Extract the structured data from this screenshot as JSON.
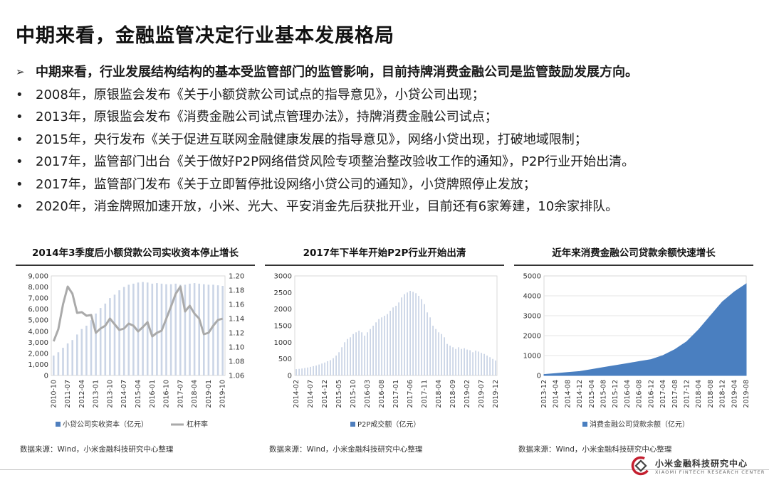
{
  "title": "中期来看，金融监管决定行业基本发展格局",
  "bullets": {
    "lead": "中期来看，行业发展结构结构的基本受监管部门的监管影响，目前持牌消费金融公司是监管鼓励发展方向。",
    "items": [
      "2008年，原银监会发布《关于小额贷款公司试点的指导意见》，小贷公司出现；",
      "2013年，原银监会发布《消费金融公司试点管理办法》，持牌消费金融公司试点；",
      "2015年，央行发布《关于促进互联网金融健康发展的指导意见》，网络小贷出现，打破地域限制；",
      "2017年，监管部门出台《关于做好P2P网络借贷风险专项整治整改验收工作的通知》，P2P行业开始出清。",
      "2017年，监管部门发布《关于立即暂停批设网络小贷公司的通知》，小贷牌照停止发放；",
      "2020年，消金牌照加速开放，小米、光大、平安消金先后获批开业，目前还有6家筹建，10余家排队。"
    ]
  },
  "marks": {
    "lead": "➢",
    "item": "•"
  },
  "panels": [
    {
      "title": "2014年3季度后小额贷款公司实收资本停止增长",
      "source": "数据来源：Wind，小米金融科技研究中心整理"
    },
    {
      "title": "2017年下半年开始P2P行业开始出清",
      "source": "数据来源：Wind，小米金融科技研究中心整理"
    },
    {
      "title": "近年来消费金融公司贷款余额快速增长",
      "source": "数据来源：Wind，小米金融科技研究中心整理"
    }
  ],
  "brand": {
    "cn": "小米金融科技研究中心",
    "en": "XIAOMI FINTECH RESEARCH CENTER"
  },
  "chart_data": [
    {
      "type": "bar",
      "subtype": "bar+line dual axis",
      "categories": [
        "2010-10",
        "2011-01",
        "2011-04",
        "2011-07",
        "2011-10",
        "2012-01",
        "2012-04",
        "2012-07",
        "2012-10",
        "2013-01",
        "2013-04",
        "2013-07",
        "2013-10",
        "2014-01",
        "2014-04",
        "2014-07",
        "2014-10",
        "2015-01",
        "2015-04",
        "2015-07",
        "2015-10",
        "2016-01",
        "2016-04",
        "2016-07",
        "2016-10",
        "2017-01",
        "2017-04",
        "2017-07",
        "2017-10",
        "2018-01",
        "2018-04",
        "2018-07",
        "2018-10",
        "2019-01",
        "2019-04",
        "2019-07",
        "2019-10"
      ],
      "x_tick_labels": [
        "2010-10",
        "2011-07",
        "2012-04",
        "2013-01",
        "2013-10",
        "2014-07",
        "2015-04",
        "2016-01",
        "2016-10",
        "2017-07",
        "2018-04",
        "2019-01",
        "2019-10"
      ],
      "series": [
        {
          "name": "小贷公司实收资本（亿元）",
          "kind": "bar",
          "axis": "left",
          "values": [
            1800,
            2100,
            2500,
            2900,
            3200,
            3700,
            4200,
            4500,
            5000,
            5600,
            6100,
            6500,
            7000,
            7300,
            7700,
            8000,
            8200,
            8300,
            8400,
            8450,
            8400,
            8300,
            8350,
            8300,
            8250,
            8250,
            8300,
            8200,
            8200,
            8300,
            8350,
            8300,
            8250,
            8200,
            8200,
            8150,
            8100
          ]
        },
        {
          "name": "杠杆率",
          "kind": "line",
          "axis": "right",
          "values": [
            1.108,
            1.125,
            1.16,
            1.185,
            1.175,
            1.148,
            1.149,
            1.144,
            1.145,
            1.12,
            1.126,
            1.13,
            1.14,
            1.132,
            1.124,
            1.126,
            1.133,
            1.13,
            1.122,
            1.128,
            1.135,
            1.115,
            1.12,
            1.123,
            1.14,
            1.157,
            1.175,
            1.185,
            1.15,
            1.158,
            1.147,
            1.14,
            1.118,
            1.12,
            1.13,
            1.138,
            1.14
          ]
        }
      ],
      "ylim": [
        0,
        9000
      ],
      "yticks": [
        "9,000",
        "8,000",
        "7,000",
        "6,000",
        "5,000",
        "4,000",
        "3,000",
        "2,000",
        "1,000",
        "0"
      ],
      "y2lim": [
        1.06,
        1.2
      ],
      "y2ticks": [
        "1.20",
        "1.18",
        "1.16",
        "1.14",
        "1.12",
        "1.10",
        "1.08",
        "1.06"
      ],
      "legend": [
        "小贷公司实收资本（亿元）",
        "杠杆率"
      ],
      "legend_position": "bottom",
      "colors": {
        "bar": "#cbd5e6",
        "bar_legend": "#4f7fbe",
        "line": "#aaaaaa"
      }
    },
    {
      "type": "bar",
      "categories": [
        "2014-02",
        "2014-03",
        "2014-04",
        "2014-05",
        "2014-06",
        "2014-07",
        "2014-08",
        "2014-09",
        "2014-10",
        "2014-11",
        "2014-12",
        "2015-01",
        "2015-02",
        "2015-03",
        "2015-04",
        "2015-05",
        "2015-06",
        "2015-07",
        "2015-08",
        "2015-09",
        "2015-10",
        "2015-11",
        "2015-12",
        "2016-01",
        "2016-02",
        "2016-03",
        "2016-04",
        "2016-05",
        "2016-06",
        "2016-07",
        "2016-08",
        "2016-09",
        "2016-10",
        "2016-11",
        "2016-12",
        "2017-01",
        "2017-02",
        "2017-03",
        "2017-04",
        "2017-05",
        "2017-06",
        "2017-07",
        "2017-08",
        "2017-09",
        "2017-10",
        "2017-11",
        "2017-12",
        "2018-01",
        "2018-02",
        "2018-03",
        "2018-04",
        "2018-05",
        "2018-06",
        "2018-07",
        "2018-08",
        "2018-09",
        "2018-10",
        "2018-11",
        "2018-12",
        "2019-01",
        "2019-02",
        "2019-03",
        "2019-04",
        "2019-05",
        "2019-06",
        "2019-07",
        "2019-08",
        "2019-09",
        "2019-10",
        "2019-11",
        "2019-12"
      ],
      "x_tick_labels": [
        "2014-02",
        "2014-07",
        "2014-12",
        "2015-05",
        "2015-10",
        "2016-03",
        "2016-08",
        "2017-01",
        "2017-06",
        "2017-11",
        "2018-04",
        "2018-09",
        "2019-02",
        "2019-07",
        "2019-12"
      ],
      "series": [
        {
          "name": "P2P成交额（亿元）",
          "values": [
            190,
            200,
            210,
            225,
            240,
            260,
            280,
            300,
            330,
            360,
            390,
            430,
            460,
            520,
            600,
            700,
            850,
            1000,
            1100,
            1150,
            1250,
            1300,
            1350,
            1300,
            1200,
            1300,
            1400,
            1500,
            1600,
            1700,
            1750,
            1800,
            1850,
            1950,
            2050,
            2100,
            2200,
            2350,
            2450,
            2500,
            2550,
            2520,
            2480,
            2400,
            2300,
            2150,
            1900,
            1750,
            1500,
            1400,
            1300,
            1250,
            1150,
            950,
            900,
            850,
            800,
            850,
            800,
            820,
            780,
            760,
            700,
            750,
            720,
            680,
            650,
            600,
            550,
            500,
            450
          ]
        }
      ],
      "ylim": [
        0,
        3000
      ],
      "yticks": [
        "3000",
        "2500",
        "2000",
        "1500",
        "1000",
        "500",
        "0"
      ],
      "legend": [
        "P2P成交额（亿元）"
      ],
      "legend_position": "bottom",
      "colors": {
        "bar": "#cbd5e6",
        "bar_legend": "#4f7fbe"
      }
    },
    {
      "type": "area",
      "x": [
        "2013-12",
        "2014-04",
        "2014-08",
        "2014-12",
        "2015-04",
        "2015-08",
        "2015-12",
        "2016-04",
        "2016-08",
        "2016-12",
        "2017-04",
        "2017-08",
        "2017-12",
        "2018-04",
        "2018-08",
        "2018-12",
        "2019-04",
        "2019-08"
      ],
      "series": [
        {
          "name": "消费金融公司贷款余额（亿元）",
          "values": [
            50,
            100,
            150,
            200,
            300,
            400,
            500,
            600,
            700,
            800,
            1000,
            1300,
            1700,
            2300,
            3000,
            3700,
            4200,
            4600
          ]
        }
      ],
      "ylim": [
        0,
        5000
      ],
      "yticks": [
        "5000",
        "4000",
        "3000",
        "2000",
        "1000",
        "0"
      ],
      "legend": [
        "消费金融公司贷款余额（亿元）"
      ],
      "legend_position": "bottom",
      "colors": {
        "area": "#4a7fc0"
      }
    }
  ]
}
